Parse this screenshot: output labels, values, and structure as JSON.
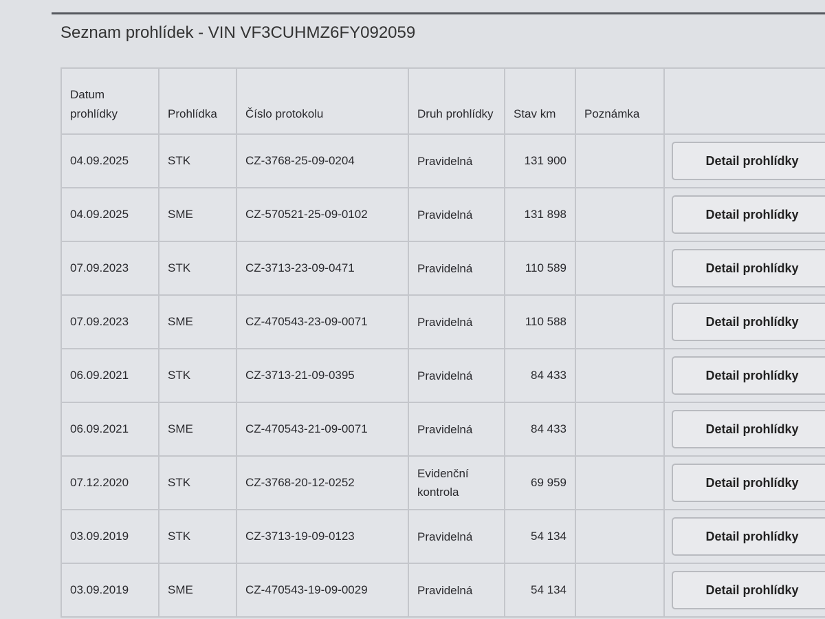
{
  "title": "Seznam prohlídek - VIN VF3CUHMZ6FY092059",
  "columns": [
    "Datum prohlídky",
    "Prohlídka",
    "Číslo protokolu",
    "Druh prohlídky",
    "Stav km",
    "Poznámka",
    ""
  ],
  "button_label": "Detail prohlídky",
  "rows": [
    {
      "date": "04.09.2025",
      "type": "STK",
      "protocol": "CZ-3768-25-09-0204",
      "kind": "Pravidelná",
      "km": "131 900",
      "note": ""
    },
    {
      "date": "04.09.2025",
      "type": "SME",
      "protocol": "CZ-570521-25-09-0102",
      "kind": "Pravidelná",
      "km": "131 898",
      "note": ""
    },
    {
      "date": "07.09.2023",
      "type": "STK",
      "protocol": "CZ-3713-23-09-0471",
      "kind": "Pravidelná",
      "km": "110 589",
      "note": ""
    },
    {
      "date": "07.09.2023",
      "type": "SME",
      "protocol": "CZ-470543-23-09-0071",
      "kind": "Pravidelná",
      "km": "110 588",
      "note": ""
    },
    {
      "date": "06.09.2021",
      "type": "STK",
      "protocol": "CZ-3713-21-09-0395",
      "kind": "Pravidelná",
      "km": "84 433",
      "note": ""
    },
    {
      "date": "06.09.2021",
      "type": "SME",
      "protocol": "CZ-470543-21-09-0071",
      "kind": "Pravidelná",
      "km": "84 433",
      "note": ""
    },
    {
      "date": "07.12.2020",
      "type": "STK",
      "protocol": "CZ-3768-20-12-0252",
      "kind": "Evidenční kontrola",
      "km": "69 959",
      "note": ""
    },
    {
      "date": "03.09.2019",
      "type": "STK",
      "protocol": "CZ-3713-19-09-0123",
      "kind": "Pravidelná",
      "km": "54 134",
      "note": ""
    },
    {
      "date": "03.09.2019",
      "type": "SME",
      "protocol": "CZ-470543-19-09-0029",
      "kind": "Pravidelná",
      "km": "54 134",
      "note": ""
    }
  ]
}
